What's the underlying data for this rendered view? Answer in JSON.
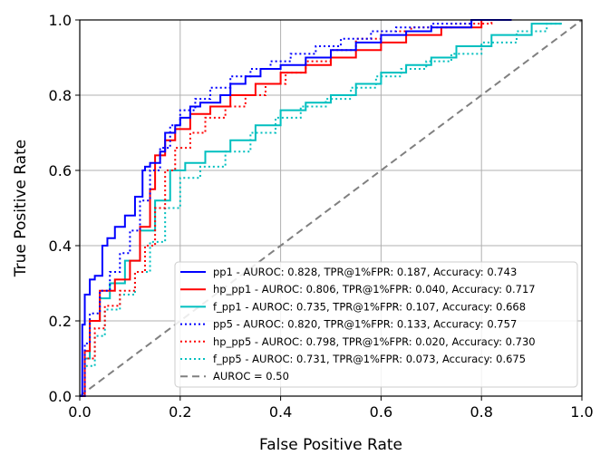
{
  "chart_data": {
    "type": "line",
    "title": "",
    "xlabel": "False Positive Rate",
    "ylabel": "True Positive Rate",
    "xlim": [
      0.0,
      1.0
    ],
    "ylim": [
      0.0,
      1.0
    ],
    "xticks": [
      "0.0",
      "0.2",
      "0.4",
      "0.6",
      "0.8",
      "1.0"
    ],
    "yticks": [
      "0.0",
      "0.2",
      "0.4",
      "0.6",
      "0.8",
      "1.0"
    ],
    "grid": true,
    "legend_position": "lower-right",
    "series": [
      {
        "name": "pp1 - AUROC: 0.828, TPR@1%FPR: 0.187, Accuracy: 0.743",
        "color": "#0000ff",
        "style": "solid",
        "x": [
          0,
          0.005,
          0.005,
          0.01,
          0.01,
          0.02,
          0.02,
          0.03,
          0.03,
          0.045,
          0.045,
          0.055,
          0.055,
          0.07,
          0.07,
          0.09,
          0.09,
          0.11,
          0.11,
          0.125,
          0.125,
          0.13,
          0.13,
          0.14,
          0.14,
          0.16,
          0.16,
          0.17,
          0.17,
          0.19,
          0.19,
          0.2,
          0.2,
          0.22,
          0.22,
          0.24,
          0.24,
          0.28,
          0.28,
          0.3,
          0.3,
          0.33,
          0.33,
          0.36,
          0.36,
          0.4,
          0.4,
          0.45,
          0.45,
          0.5,
          0.5,
          0.55,
          0.55,
          0.6,
          0.6,
          0.65,
          0.65,
          0.7,
          0.7,
          0.78,
          0.78,
          0.86
        ],
        "y": [
          0,
          0,
          0.19,
          0.19,
          0.27,
          0.27,
          0.31,
          0.31,
          0.32,
          0.32,
          0.4,
          0.4,
          0.42,
          0.42,
          0.45,
          0.45,
          0.48,
          0.48,
          0.53,
          0.53,
          0.6,
          0.6,
          0.61,
          0.61,
          0.62,
          0.62,
          0.65,
          0.65,
          0.7,
          0.7,
          0.72,
          0.72,
          0.74,
          0.74,
          0.77,
          0.77,
          0.78,
          0.78,
          0.8,
          0.8,
          0.83,
          0.83,
          0.85,
          0.85,
          0.87,
          0.87,
          0.88,
          0.88,
          0.9,
          0.9,
          0.92,
          0.92,
          0.94,
          0.94,
          0.96,
          0.96,
          0.97,
          0.97,
          0.98,
          0.98,
          1.0,
          1.0
        ]
      },
      {
        "name": "hp_pp1 - AUROC: 0.806, TPR@1%FPR: 0.040, Accuracy: 0.717",
        "color": "#ff0000",
        "style": "solid",
        "x": [
          0,
          0.01,
          0.01,
          0.02,
          0.02,
          0.04,
          0.04,
          0.07,
          0.07,
          0.1,
          0.1,
          0.12,
          0.12,
          0.14,
          0.14,
          0.15,
          0.15,
          0.17,
          0.17,
          0.19,
          0.19,
          0.22,
          0.22,
          0.26,
          0.26,
          0.3,
          0.3,
          0.35,
          0.35,
          0.4,
          0.4,
          0.45,
          0.45,
          0.5,
          0.5,
          0.55,
          0.55,
          0.6,
          0.6,
          0.65,
          0.65,
          0.72,
          0.72,
          0.8,
          0.8,
          0.86
        ],
        "y": [
          0,
          0,
          0.12,
          0.12,
          0.2,
          0.2,
          0.28,
          0.28,
          0.31,
          0.31,
          0.36,
          0.36,
          0.45,
          0.45,
          0.55,
          0.55,
          0.64,
          0.64,
          0.68,
          0.68,
          0.71,
          0.71,
          0.75,
          0.75,
          0.77,
          0.77,
          0.8,
          0.8,
          0.83,
          0.83,
          0.86,
          0.86,
          0.88,
          0.88,
          0.9,
          0.9,
          0.92,
          0.92,
          0.94,
          0.94,
          0.96,
          0.96,
          0.98,
          0.98,
          1.0,
          1.0
        ]
      },
      {
        "name": "f_pp1 - AUROC: 0.735, TPR@1%FPR: 0.107, Accuracy: 0.668",
        "color": "#00bfbf",
        "style": "solid",
        "x": [
          0,
          0.01,
          0.01,
          0.02,
          0.02,
          0.04,
          0.04,
          0.06,
          0.06,
          0.09,
          0.09,
          0.12,
          0.12,
          0.15,
          0.15,
          0.18,
          0.18,
          0.21,
          0.21,
          0.25,
          0.25,
          0.3,
          0.3,
          0.35,
          0.35,
          0.4,
          0.4,
          0.45,
          0.45,
          0.5,
          0.5,
          0.55,
          0.55,
          0.6,
          0.6,
          0.65,
          0.65,
          0.7,
          0.7,
          0.75,
          0.75,
          0.82,
          0.82,
          0.9,
          0.9,
          0.96
        ],
        "y": [
          0,
          0,
          0.1,
          0.1,
          0.2,
          0.2,
          0.26,
          0.26,
          0.3,
          0.3,
          0.36,
          0.36,
          0.44,
          0.44,
          0.52,
          0.52,
          0.6,
          0.6,
          0.62,
          0.62,
          0.65,
          0.65,
          0.68,
          0.68,
          0.72,
          0.72,
          0.76,
          0.76,
          0.78,
          0.78,
          0.8,
          0.8,
          0.83,
          0.83,
          0.86,
          0.86,
          0.88,
          0.88,
          0.9,
          0.9,
          0.93,
          0.93,
          0.96,
          0.96,
          0.99,
          0.99
        ]
      },
      {
        "name": "pp5 - AUROC: 0.820, TPR@1%FPR: 0.133, Accuracy: 0.757",
        "color": "#0000ff",
        "style": "dotted",
        "x": [
          0,
          0.01,
          0.01,
          0.02,
          0.02,
          0.04,
          0.04,
          0.06,
          0.06,
          0.08,
          0.08,
          0.1,
          0.1,
          0.12,
          0.12,
          0.14,
          0.14,
          0.16,
          0.16,
          0.18,
          0.18,
          0.2,
          0.2,
          0.23,
          0.23,
          0.26,
          0.26,
          0.3,
          0.3,
          0.34,
          0.34,
          0.38,
          0.38,
          0.42,
          0.42,
          0.47,
          0.47,
          0.52,
          0.52,
          0.58,
          0.58,
          0.63,
          0.63,
          0.7,
          0.7,
          0.78,
          0.78,
          0.86
        ],
        "y": [
          0,
          0,
          0.14,
          0.14,
          0.22,
          0.22,
          0.28,
          0.28,
          0.33,
          0.33,
          0.38,
          0.38,
          0.44,
          0.44,
          0.52,
          0.52,
          0.6,
          0.6,
          0.66,
          0.66,
          0.72,
          0.72,
          0.76,
          0.76,
          0.79,
          0.79,
          0.82,
          0.82,
          0.85,
          0.85,
          0.87,
          0.87,
          0.89,
          0.89,
          0.91,
          0.91,
          0.93,
          0.93,
          0.95,
          0.95,
          0.97,
          0.97,
          0.98,
          0.98,
          0.99,
          0.99,
          1.0,
          1.0
        ]
      },
      {
        "name": "hp_pp5 - AUROC: 0.798, TPR@1%FPR: 0.020, Accuracy: 0.730",
        "color": "#ff0000",
        "style": "dotted",
        "x": [
          0,
          0.01,
          0.01,
          0.03,
          0.03,
          0.05,
          0.05,
          0.08,
          0.08,
          0.11,
          0.11,
          0.13,
          0.13,
          0.15,
          0.15,
          0.17,
          0.17,
          0.19,
          0.19,
          0.22,
          0.22,
          0.25,
          0.25,
          0.29,
          0.29,
          0.33,
          0.33,
          0.37,
          0.37,
          0.41,
          0.41,
          0.45,
          0.45,
          0.5,
          0.5,
          0.55,
          0.55,
          0.6,
          0.6,
          0.66,
          0.66,
          0.74,
          0.74,
          0.82,
          0.82,
          0.86
        ],
        "y": [
          0,
          0,
          0.1,
          0.1,
          0.18,
          0.18,
          0.24,
          0.24,
          0.28,
          0.28,
          0.33,
          0.33,
          0.4,
          0.4,
          0.5,
          0.5,
          0.6,
          0.6,
          0.66,
          0.66,
          0.7,
          0.7,
          0.74,
          0.74,
          0.77,
          0.77,
          0.8,
          0.8,
          0.83,
          0.83,
          0.86,
          0.86,
          0.89,
          0.89,
          0.92,
          0.92,
          0.95,
          0.95,
          0.97,
          0.97,
          0.98,
          0.98,
          0.99,
          0.99,
          1.0,
          1.0
        ]
      },
      {
        "name": "f_pp5 - AUROC: 0.731, TPR@1%FPR: 0.073, Accuracy: 0.675",
        "color": "#00bfbf",
        "style": "dotted",
        "x": [
          0,
          0.01,
          0.01,
          0.03,
          0.03,
          0.05,
          0.05,
          0.08,
          0.08,
          0.11,
          0.11,
          0.14,
          0.14,
          0.17,
          0.17,
          0.2,
          0.2,
          0.24,
          0.24,
          0.29,
          0.29,
          0.34,
          0.34,
          0.39,
          0.39,
          0.44,
          0.44,
          0.49,
          0.49,
          0.54,
          0.54,
          0.59,
          0.59,
          0.64,
          0.64,
          0.69,
          0.69,
          0.74,
          0.74,
          0.8,
          0.8,
          0.87,
          0.87,
          0.93,
          0.93,
          0.96
        ],
        "y": [
          0,
          0,
          0.08,
          0.08,
          0.16,
          0.16,
          0.23,
          0.23,
          0.27,
          0.27,
          0.33,
          0.33,
          0.41,
          0.41,
          0.5,
          0.5,
          0.58,
          0.58,
          0.61,
          0.61,
          0.65,
          0.65,
          0.7,
          0.7,
          0.74,
          0.74,
          0.77,
          0.77,
          0.79,
          0.79,
          0.82,
          0.82,
          0.85,
          0.85,
          0.87,
          0.87,
          0.89,
          0.89,
          0.91,
          0.91,
          0.94,
          0.94,
          0.97,
          0.97,
          0.99,
          0.99
        ]
      },
      {
        "name": "AUROC = 0.50",
        "color": "#808080",
        "style": "dashed",
        "x": [
          0,
          1
        ],
        "y": [
          0,
          1
        ]
      }
    ]
  }
}
